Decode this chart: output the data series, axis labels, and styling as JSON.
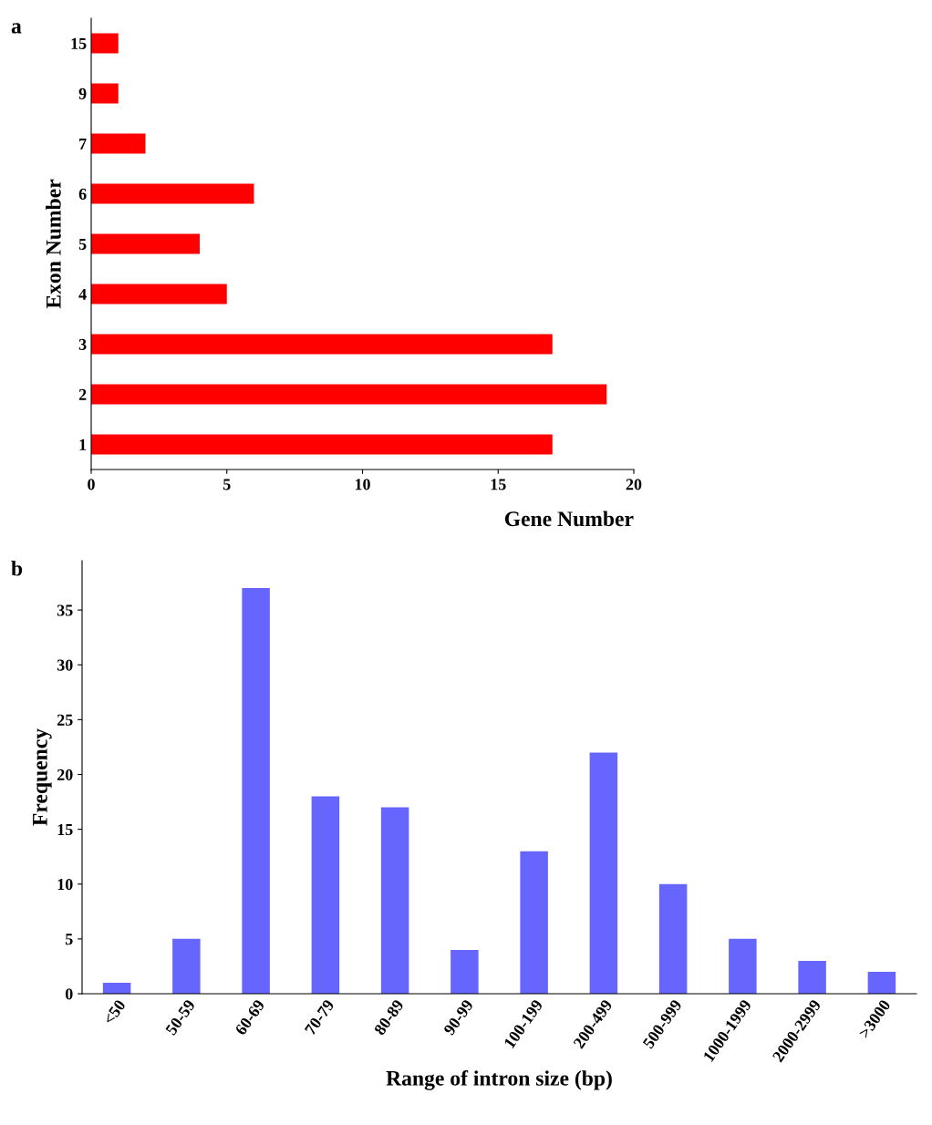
{
  "chart_data": [
    {
      "type": "bar",
      "orientation": "horizontal",
      "annotations": [
        "a"
      ],
      "xlabel": "Gene Number",
      "ylabel": "Exon Number",
      "categories": [
        "15",
        "9",
        "7",
        "6",
        "5",
        "4",
        "3",
        "2",
        "1"
      ],
      "values": [
        1,
        1,
        2,
        6,
        4,
        5,
        17,
        19,
        17
      ],
      "color": "#ff0000",
      "xlim": [
        0,
        20
      ],
      "xticks": [
        0,
        5,
        10,
        15,
        20
      ],
      "grid": false,
      "legend": false
    },
    {
      "type": "bar",
      "annotations": [
        "b"
      ],
      "xlabel": "Range of intron size (bp)",
      "ylabel": "Frequency",
      "categories": [
        "<50",
        "50-59",
        "60-69",
        "70-79",
        "80-89",
        "90-99",
        "100-199",
        "200-499",
        "500-999",
        "1000-1999",
        "2000-2999",
        ">3000"
      ],
      "values": [
        1,
        5,
        37,
        18,
        17,
        4,
        13,
        22,
        10,
        5,
        3,
        2
      ],
      "color": "#6666ff",
      "ylim": [
        0,
        39.5
      ],
      "yticks": [
        0,
        5,
        10,
        15,
        20,
        25,
        30,
        35
      ],
      "grid": false,
      "legend": false
    }
  ]
}
